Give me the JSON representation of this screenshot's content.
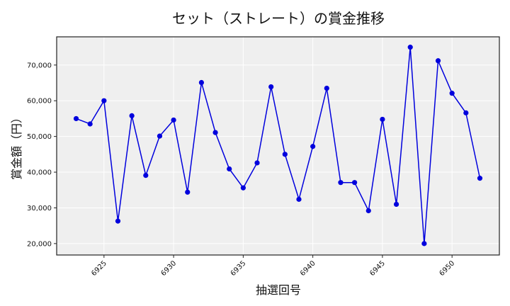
{
  "chart_data": {
    "type": "line",
    "title": "セット（ストレート）の賞金推移",
    "xlabel": "抽選回号",
    "ylabel": "賞金額（円）",
    "x": [
      6923,
      6924,
      6925,
      6926,
      6927,
      6928,
      6929,
      6930,
      6931,
      6932,
      6933,
      6934,
      6935,
      6936,
      6937,
      6938,
      6939,
      6940,
      6941,
      6942,
      6943,
      6944,
      6945,
      6946,
      6947,
      6948,
      6949,
      6950,
      6951,
      6952
    ],
    "series": [
      {
        "name": "セット（ストレート）",
        "color": "#0000dd",
        "marker": "circle",
        "values": [
          55000,
          53500,
          60000,
          26300,
          55800,
          39100,
          50100,
          54600,
          34400,
          65100,
          51100,
          40900,
          35600,
          42600,
          63900,
          45000,
          32400,
          47200,
          63500,
          37100,
          37100,
          29200,
          54800,
          31000,
          75000,
          20000,
          71200,
          62100,
          56600,
          38300
        ]
      }
    ],
    "xticks": [
      6925,
      6930,
      6935,
      6940,
      6945,
      6950
    ],
    "xtick_labels": [
      "6925",
      "6930",
      "6935",
      "6940",
      "6945",
      "6950"
    ],
    "yticks": [
      20000,
      30000,
      40000,
      50000,
      60000,
      70000
    ],
    "ytick_labels": [
      "20,000",
      "30,000",
      "40,000",
      "50,000",
      "60,000",
      "70,000"
    ],
    "xlim": [
      6921.6,
      6953.4
    ],
    "ylim": [
      16800,
      77900
    ],
    "grid": true,
    "legend": false,
    "background": "#efefef",
    "grid_color": "#ffffff"
  }
}
